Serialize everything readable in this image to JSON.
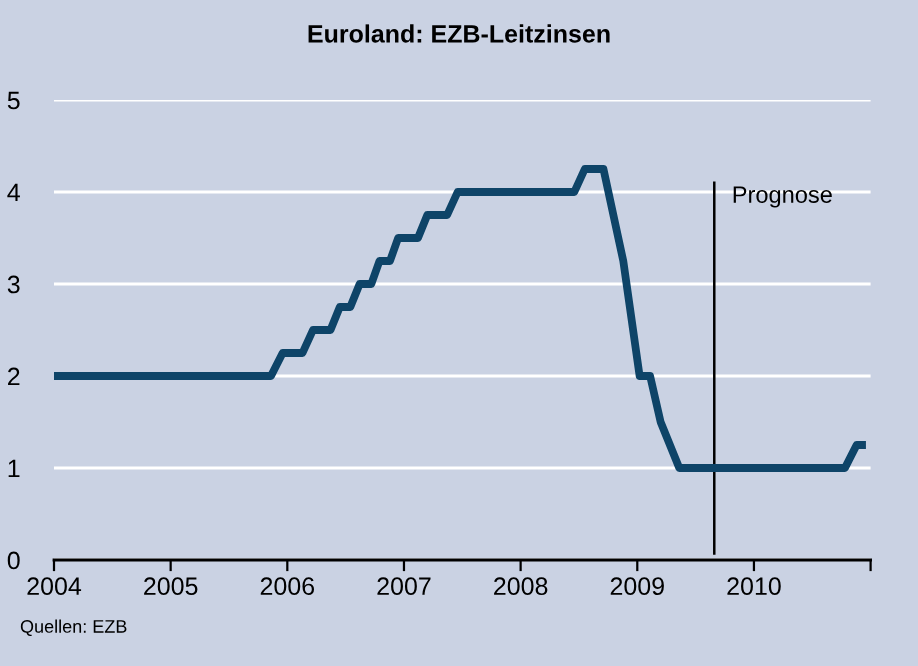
{
  "chart_data": {
    "type": "line",
    "title": "Euroland: EZB-Leitzinsen",
    "x": [
      2004,
      2005.86,
      2005.96,
      2006.13,
      2006.22,
      2006.37,
      2006.45,
      2006.54,
      2006.62,
      2006.72,
      2006.79,
      2006.88,
      2006.95,
      2007.12,
      2007.2,
      2007.37,
      2007.46,
      2008.46,
      2008.55,
      2008.71,
      2008.88,
      2009.02,
      2009.11,
      2009.2,
      2009.36,
      2010.78,
      2010.88,
      2010.96
    ],
    "series": [
      {
        "color": "#0e4468",
        "values": [
          2,
          2,
          2.25,
          2.25,
          2.5,
          2.5,
          2.75,
          2.75,
          3,
          3,
          3.25,
          3.25,
          3.5,
          3.5,
          3.75,
          3.75,
          4,
          4,
          4.25,
          4.25,
          3.25,
          2,
          2,
          1.5,
          1,
          1,
          1.25,
          1.25
        ]
      }
    ],
    "xlim": [
      2004,
      2011
    ],
    "xticks": [
      2004,
      2005,
      2006,
      2007,
      2008,
      2009,
      2010,
      {
        "value": 2011,
        "label": null
      }
    ],
    "ylim": [
      0,
      5
    ],
    "yticks": [
      0,
      1,
      2,
      3,
      4,
      5
    ],
    "grid": "y",
    "ref_lines": [
      {
        "axis": "x",
        "value": 2009.66,
        "label": "Prognose",
        "color": "#000000"
      }
    ],
    "annotations": [
      "Quellen: EZB"
    ]
  }
}
